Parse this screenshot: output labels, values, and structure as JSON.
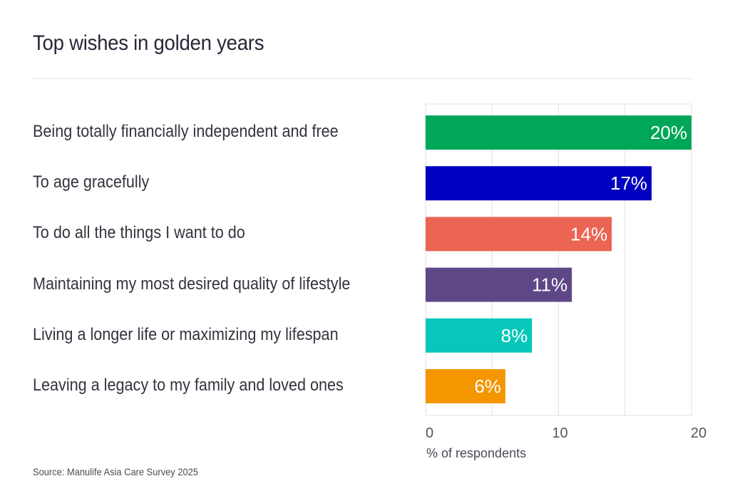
{
  "chart_data": {
    "type": "bar",
    "orientation": "horizontal",
    "title": "Top wishes in golden years",
    "categories": [
      "Being totally financially independent and free",
      "To age gracefully",
      "To do all the things I want to do",
      "Maintaining my most desired quality of lifestyle",
      "Living a longer life or maximizing my lifespan",
      "Leaving a legacy to my family and loved ones"
    ],
    "values": [
      20,
      17,
      14,
      11,
      8,
      6
    ],
    "data_labels": [
      "20%",
      "17%",
      "14%",
      "11%",
      "8%",
      "6%"
    ],
    "colors": [
      "#00a758",
      "#0000c1",
      "#ec6453",
      "#5e4787",
      "#06c7ba",
      "#f49600"
    ],
    "xlabel": "% of respondents",
    "ylabel": "",
    "xlim": [
      0,
      20
    ],
    "xticks": [
      0,
      10,
      20
    ],
    "x_tick_labels": [
      "0",
      "10",
      "20"
    ],
    "gridlines": [
      5,
      10,
      15
    ],
    "grid": true,
    "legend": "none",
    "source": "Source: Manulife Asia Care Survey 2025"
  }
}
